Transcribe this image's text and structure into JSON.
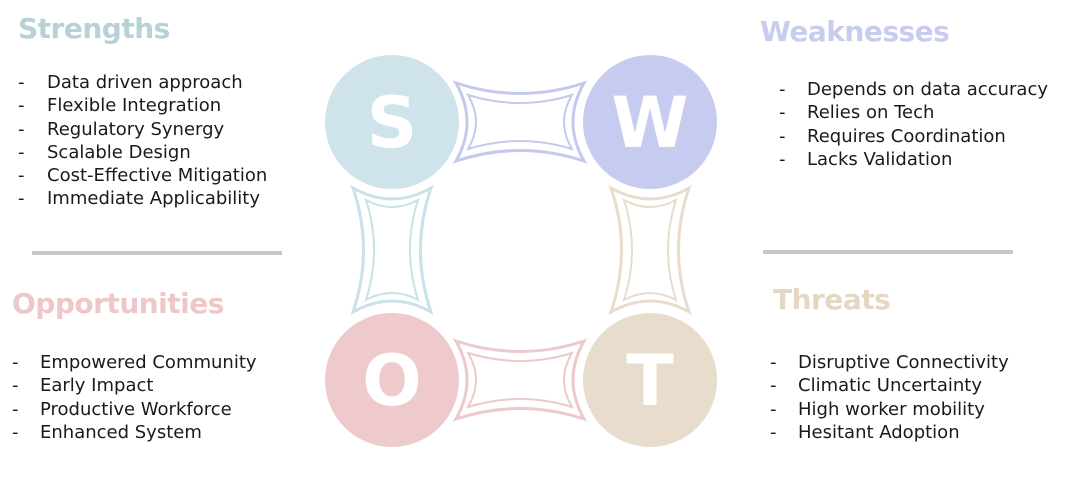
{
  "strengths": {
    "title": "Strengths",
    "letter": "S",
    "color": "#c9e1e8",
    "title_color": "#b6d1d8",
    "items": [
      "Data driven approach",
      "Flexible Integration",
      "Regulatory Synergy",
      "Scalable Design",
      "Cost-Effective Mitigation",
      "Immediate Applicability"
    ]
  },
  "weaknesses": {
    "title": "Weaknesses",
    "letter": "W",
    "color": "#c4c9ee",
    "title_color": "#c8ccee",
    "items": [
      "Depends on data accuracy",
      "Relies on Tech",
      "Requires Coordination",
      "Lacks Validation"
    ]
  },
  "opportunities": {
    "title": "Opportunities",
    "letter": "O",
    "color": "#eec9cb",
    "title_color": "#eec7c9",
    "items": [
      "Empowered Community",
      "Early Impact",
      "Productive Workforce",
      "Enhanced System"
    ]
  },
  "threats": {
    "title": "Threats",
    "letter": "T",
    "color": "#e8dccd",
    "title_color": "#e4d8c4",
    "items": [
      "Disruptive Connectivity",
      "Climatic Uncertainty",
      "High worker mobility",
      "Hesitant Adoption"
    ]
  },
  "bullet": "-"
}
